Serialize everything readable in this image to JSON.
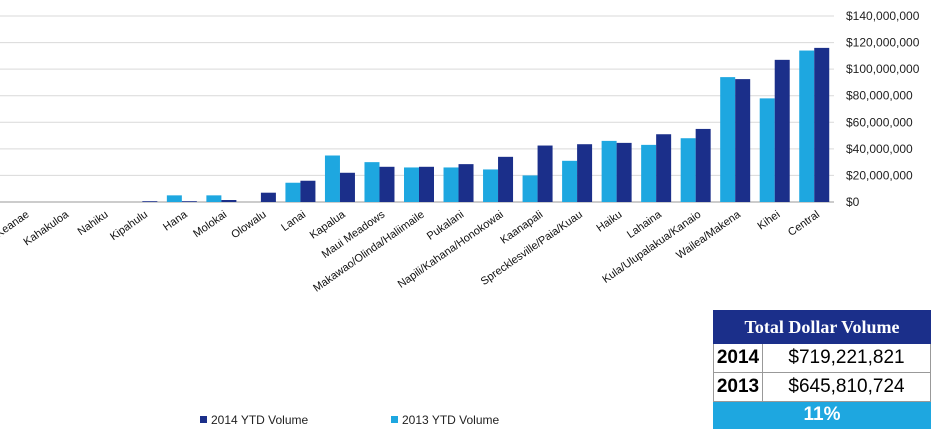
{
  "chart_data": {
    "type": "bar",
    "categories": [
      "Keanae",
      "Kahakuloa",
      "Nahiku",
      "Kipahulu",
      "Hana",
      "Molokai",
      "Olowalu",
      "Lanai",
      "Kapalua",
      "Maui Meadows",
      "Makawao/Olinda/Haliimaile",
      "Pukalani",
      "Napili/Kahana/Honokowai",
      "Kaanapali",
      "Sprecklesville/Paia/Kuau",
      "Haiku",
      "Lahaina",
      "Kula/Ulupalakua/Kanaio",
      "Wailea/Makena",
      "Kihei",
      "Central"
    ],
    "series": [
      {
        "name": "2013 YTD Volume",
        "color": "#1ea7e0",
        "values": [
          0,
          0,
          0,
          0,
          5000000,
          5000000,
          0,
          14500000,
          35000000,
          30000000,
          26000000,
          26000000,
          24500000,
          20000000,
          31000000,
          46000000,
          43000000,
          48000000,
          94000000,
          78000000,
          114000000
        ]
      },
      {
        "name": "2014 YTD Volume",
        "color": "#1b2f8a",
        "values": [
          0,
          0,
          0,
          200000,
          500000,
          1500000,
          7000000,
          16000000,
          22000000,
          26500000,
          26500000,
          28500000,
          34000000,
          42500000,
          43500000,
          44500000,
          51000000,
          55000000,
          92500000,
          107000000,
          116000000
        ]
      }
    ],
    "y_ticks": [
      "$0",
      "$20,000,000",
      "$40,000,000",
      "$60,000,000",
      "$80,000,000",
      "$100,000,000",
      "$120,000,000",
      "$140,000,000"
    ],
    "ylim": [
      0,
      140000000
    ],
    "y_axis_side": "right",
    "grid": true,
    "legend": [
      {
        "label": "2014 YTD Volume",
        "color": "#1b2f8a"
      },
      {
        "label": "2013 YTD Volume",
        "color": "#1ea7e0"
      }
    ],
    "legend_position": "bottom"
  },
  "totals_table": {
    "title": "Total Dollar Volume",
    "rows": [
      {
        "year": "2014",
        "value": "$719,221,821"
      },
      {
        "year": "2013",
        "value": "$645,810,724"
      }
    ],
    "change": "11%"
  }
}
